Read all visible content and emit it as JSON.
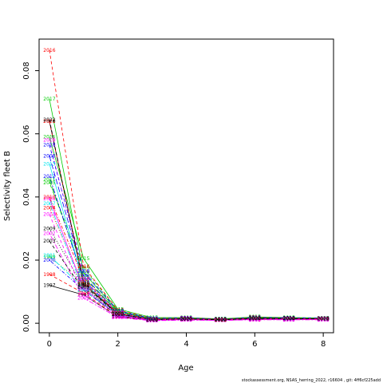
{
  "chart_data": {
    "type": "line",
    "xlabel": "Age",
    "ylabel": "Selectivity fleet B",
    "xlim": [
      -0.3,
      8.3
    ],
    "ylim": [
      -0.003,
      0.09
    ],
    "x_ticks": [
      "0",
      "2",
      "4",
      "6",
      "8"
    ],
    "y_ticks": [
      "0.00",
      "0.02",
      "0.04",
      "0.06",
      "0.08"
    ],
    "x": [
      0,
      1,
      2,
      3,
      4,
      5,
      6,
      7,
      8
    ],
    "grid": false,
    "series": [
      {
        "name": "1997",
        "color": "#000000",
        "dash": "solid",
        "values": [
          0.012,
          0.009,
          0.002,
          0.001,
          0.0012,
          0.001,
          0.0012,
          0.0012,
          0.0012
        ]
      },
      {
        "name": "1998",
        "color": "#ff0000",
        "dash": "dashed",
        "values": [
          0.0155,
          0.0095,
          0.0022,
          0.001,
          0.0012,
          0.001,
          0.0012,
          0.0013,
          0.0013
        ]
      },
      {
        "name": "1999",
        "color": "#00cc00",
        "dash": "dotted",
        "values": [
          0.021,
          0.0125,
          0.003,
          0.0012,
          0.0014,
          0.0011,
          0.0015,
          0.0015,
          0.0014
        ]
      },
      {
        "name": "2000",
        "color": "#0000ff",
        "dash": "dotdash",
        "values": [
          0.02,
          0.0105,
          0.0024,
          0.001,
          0.0013,
          0.001,
          0.0013,
          0.0013,
          0.0013
        ]
      },
      {
        "name": "2001",
        "color": "#00e5ee",
        "dash": "longdash",
        "values": [
          0.0215,
          0.011,
          0.0028,
          0.0011,
          0.0014,
          0.0012,
          0.0016,
          0.0014,
          0.0014
        ]
      },
      {
        "name": "2002",
        "color": "#ff00ff",
        "dash": "twodash",
        "values": [
          0.0285,
          0.008,
          0.0018,
          0.0008,
          0.001,
          0.0009,
          0.0011,
          0.0011,
          0.0011
        ]
      },
      {
        "name": "2003",
        "color": "#000000",
        "dash": "dashed",
        "values": [
          0.026,
          0.0105,
          0.0024,
          0.001,
          0.0012,
          0.001,
          0.0013,
          0.0013,
          0.0013
        ]
      },
      {
        "name": "2004",
        "color": "#ff0000",
        "dash": "dotted",
        "values": [
          0.0365,
          0.012,
          0.003,
          0.0012,
          0.0013,
          0.0011,
          0.0014,
          0.0014,
          0.0014
        ]
      },
      {
        "name": "2005",
        "color": "#00cc00",
        "dash": "dotdash",
        "values": [
          0.0445,
          0.0175,
          0.004,
          0.0015,
          0.0016,
          0.0013,
          0.0017,
          0.0016,
          0.0016
        ]
      },
      {
        "name": "2006",
        "color": "#0000ff",
        "dash": "longdash",
        "values": [
          0.053,
          0.015,
          0.0035,
          0.0014,
          0.0015,
          0.0012,
          0.0016,
          0.0015,
          0.0015
        ]
      },
      {
        "name": "2007",
        "color": "#00e5ee",
        "dash": "twodash",
        "values": [
          0.038,
          0.0105,
          0.0026,
          0.001,
          0.0012,
          0.001,
          0.0013,
          0.0013,
          0.0013
        ]
      },
      {
        "name": "2008",
        "color": "#ff00ff",
        "dash": "solid",
        "values": [
          0.0395,
          0.011,
          0.0025,
          0.001,
          0.0012,
          0.001,
          0.0013,
          0.0013,
          0.0013
        ]
      },
      {
        "name": "2009",
        "color": "#000000",
        "dash": "dotted",
        "values": [
          0.03,
          0.0115,
          0.0028,
          0.0011,
          0.0013,
          0.0011,
          0.0014,
          0.0014,
          0.0014
        ]
      },
      {
        "name": "2010",
        "color": "#ff0000",
        "dash": "dotdash",
        "values": [
          0.04,
          0.014,
          0.0034,
          0.0013,
          0.0014,
          0.0012,
          0.0016,
          0.0015,
          0.0015
        ]
      },
      {
        "name": "2011",
        "color": "#00cc00",
        "dash": "longdash",
        "values": [
          0.0455,
          0.0145,
          0.0036,
          0.0014,
          0.0016,
          0.0013,
          0.0017,
          0.0016,
          0.0016
        ]
      },
      {
        "name": "2012",
        "color": "#0000ff",
        "dash": "twodash",
        "values": [
          0.0465,
          0.0135,
          0.0032,
          0.0013,
          0.0015,
          0.0012,
          0.0016,
          0.0015,
          0.0015
        ]
      },
      {
        "name": "2013",
        "color": "#00e5ee",
        "dash": "solid",
        "values": [
          0.0505,
          0.013,
          0.003,
          0.0012,
          0.0014,
          0.0012,
          0.0015,
          0.0015,
          0.0015
        ]
      },
      {
        "name": "2014",
        "color": "#ff00ff",
        "dash": "dashed",
        "values": [
          0.0345,
          0.009,
          0.002,
          0.0009,
          0.0011,
          0.0009,
          0.0012,
          0.0012,
          0.0012
        ]
      },
      {
        "name": "2015",
        "color": "#00cc00",
        "dash": "solid",
        "values": [
          0.059,
          0.0205,
          0.0045,
          0.0018,
          0.0018,
          0.0014,
          0.002,
          0.0018,
          0.0017
        ]
      },
      {
        "name": "2016",
        "color": "#ff0000",
        "dash": "dashed",
        "values": [
          0.0865,
          0.018,
          0.0042,
          0.0016,
          0.0017,
          0.0013,
          0.0019,
          0.0017,
          0.0016
        ]
      },
      {
        "name": "2017",
        "color": "#00cc00",
        "dash": "solid",
        "values": [
          0.071,
          0.016,
          0.0038,
          0.0015,
          0.0016,
          0.0013,
          0.0018,
          0.0017,
          0.0016
        ]
      },
      {
        "name": "2018",
        "color": "#0000ff",
        "dash": "dashed",
        "values": [
          0.0565,
          0.0165,
          0.004,
          0.0015,
          0.0017,
          0.0013,
          0.0018,
          0.0017,
          0.0016
        ]
      },
      {
        "name": "2019",
        "color": "#ff00ff",
        "dash": "dotted",
        "values": [
          0.058,
          0.014,
          0.0033,
          0.0013,
          0.0015,
          0.0012,
          0.0016,
          0.0015,
          0.0015
        ]
      },
      {
        "name": "2020",
        "color": "#000000",
        "dash": "solid",
        "values": [
          0.064,
          0.0125,
          0.003,
          0.0012,
          0.0014,
          0.0012,
          0.0015,
          0.0015,
          0.0014
        ]
      },
      {
        "name": "2021",
        "color": "#ff0000",
        "dash": "dashed",
        "values": [
          0.064,
          0.013,
          0.0031,
          0.0012,
          0.0014,
          0.0012,
          0.0015,
          0.0015,
          0.0014
        ]
      },
      {
        "name": "2022",
        "color": "#000000",
        "dash": "dashed",
        "values": [
          0.0645,
          0.012,
          0.0029,
          0.0012,
          0.0014,
          0.0011,
          0.0015,
          0.0015,
          0.0014
        ]
      }
    ],
    "label_series": [
      {
        "name": "2016",
        "y0": 0.0865,
        "y1": 0.018
      },
      {
        "name": "2017",
        "y0": 0.071,
        "y1": 0.0195
      },
      {
        "name": "2021",
        "y0": 0.0648,
        "y1": 0.016
      },
      {
        "name": "2022",
        "y0": 0.064,
        "y1": 0.014
      },
      {
        "name": "2015",
        "y0": 0.059,
        "y1": 0.0205
      },
      {
        "name": "2019",
        "y0": 0.058,
        "y1": 0.015
      },
      {
        "name": "2018",
        "y0": 0.0565,
        "y1": 0.0165
      }
    ]
  },
  "footer": "stockassessment.org, NSAS_herring_2022, r16604 , git: 4ff6cf225add"
}
